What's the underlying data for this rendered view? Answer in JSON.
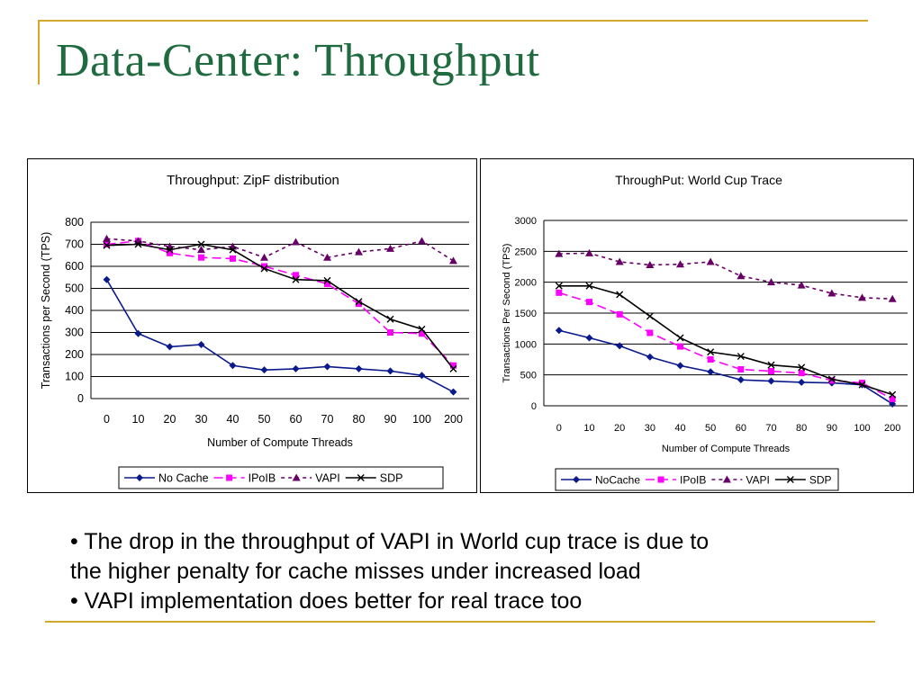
{
  "slide": {
    "title": "Data-Center: Throughput",
    "bullets": [
      "• The drop in the throughput of VAPI in World cup trace is due to",
      "the higher penalty for cache misses under increased load",
      "• VAPI implementation does better for real trace too"
    ],
    "accent_color": "#d4a82a",
    "title_color": "#1f6b3f"
  },
  "chart_data": [
    {
      "type": "line",
      "title": "Throughput: ZipF distribution",
      "xlabel": "Number of Compute Threads",
      "ylabel": "Transactions per Second (TPS)",
      "categories": [
        "0",
        "10",
        "20",
        "30",
        "40",
        "50",
        "60",
        "70",
        "80",
        "90",
        "100",
        "200"
      ],
      "ylim": [
        0,
        800
      ],
      "yticks": [
        0,
        100,
        200,
        300,
        400,
        500,
        600,
        700,
        800
      ],
      "grid": true,
      "legend": "bottom",
      "series": [
        {
          "name": "No Cache",
          "color": "#0a1a8c",
          "dash": "",
          "marker": "diamond",
          "values": [
            540,
            295,
            235,
            245,
            150,
            130,
            135,
            145,
            135,
            125,
            105,
            30
          ]
        },
        {
          "name": "IPoIB",
          "color": "#ff00ff",
          "dash": "10 5",
          "marker": "square",
          "values": [
            700,
            715,
            660,
            640,
            635,
            600,
            560,
            520,
            430,
            300,
            295,
            150
          ]
        },
        {
          "name": "VAPI",
          "color": "#660066",
          "dash": "4 4",
          "marker": "triangle",
          "values": [
            725,
            715,
            690,
            675,
            690,
            640,
            710,
            640,
            665,
            680,
            715,
            625
          ]
        },
        {
          "name": "SDP",
          "color": "#000000",
          "dash": "",
          "marker": "x",
          "values": [
            695,
            700,
            675,
            700,
            675,
            590,
            540,
            535,
            440,
            360,
            315,
            135
          ]
        }
      ]
    },
    {
      "type": "line",
      "title": "ThroughPut: World Cup Trace",
      "xlabel": "Number of Compute Threads",
      "ylabel": "Transactions Per Second (TPS)",
      "categories": [
        "0",
        "10",
        "20",
        "30",
        "40",
        "50",
        "60",
        "70",
        "80",
        "90",
        "100",
        "200"
      ],
      "ylim": [
        0,
        3000
      ],
      "yticks": [
        0,
        500,
        1000,
        1500,
        2000,
        2500,
        3000
      ],
      "grid": true,
      "legend": "bottom",
      "series": [
        {
          "name": "NoCache",
          "color": "#0a1a8c",
          "dash": "",
          "marker": "diamond",
          "values": [
            1220,
            1100,
            970,
            790,
            650,
            550,
            420,
            400,
            380,
            370,
            340,
            30
          ]
        },
        {
          "name": "IPoIB",
          "color": "#ff00ff",
          "dash": "10 5",
          "marker": "square",
          "values": [
            1830,
            1680,
            1480,
            1180,
            960,
            750,
            590,
            560,
            530,
            410,
            370,
            110
          ]
        },
        {
          "name": "VAPI",
          "color": "#660066",
          "dash": "4 4",
          "marker": "triangle",
          "values": [
            2460,
            2470,
            2330,
            2280,
            2290,
            2330,
            2100,
            2000,
            1950,
            1820,
            1750,
            1730
          ]
        },
        {
          "name": "SDP",
          "color": "#000000",
          "dash": "",
          "marker": "x",
          "values": [
            1940,
            1940,
            1800,
            1450,
            1100,
            870,
            800,
            660,
            620,
            430,
            340,
            180
          ]
        }
      ]
    }
  ]
}
